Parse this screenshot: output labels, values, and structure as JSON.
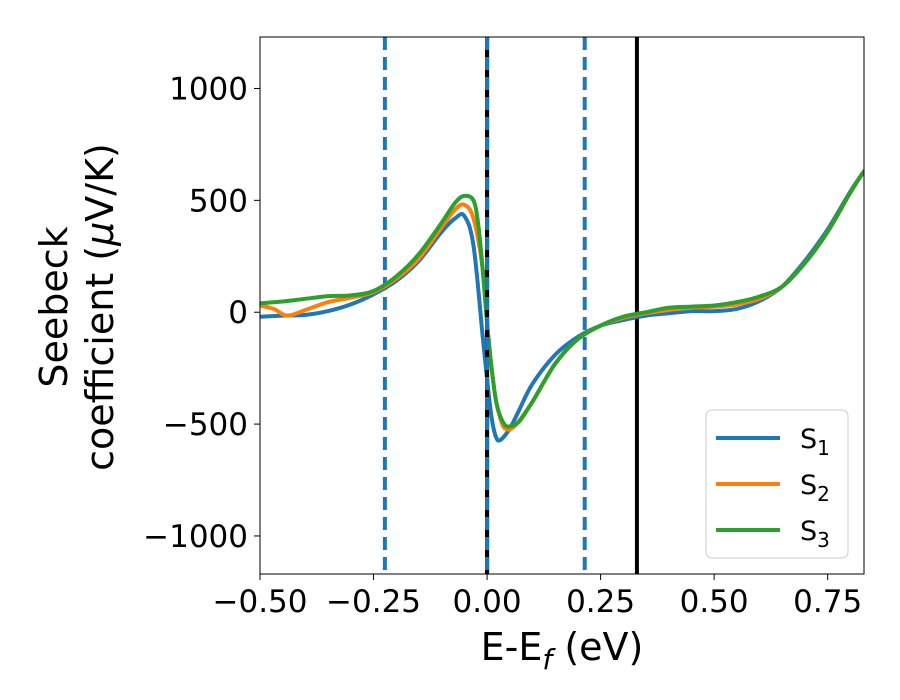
{
  "chart_data": {
    "type": "line",
    "xlabel": "E-E",
    "xlabel_sub": "f",
    "xlabel_unit": " (eV)",
    "ylabel_line1": "Seebeck",
    "ylabel_line2_prefix": "coefficient  (",
    "ylabel_mu": "μ",
    "ylabel_line2_suffix": "V/K)",
    "xlim": [
      -0.5,
      0.83
    ],
    "ylim": [
      -1170,
      1230
    ],
    "x_ticks": [
      -0.5,
      -0.25,
      0.0,
      0.25,
      0.5,
      0.75
    ],
    "x_tick_labels": [
      "−0.50",
      "−0.25",
      "0.00",
      "0.25",
      "0.50",
      "0.75"
    ],
    "y_ticks": [
      -1000,
      -500,
      0,
      500,
      1000
    ],
    "y_tick_labels": [
      "−1000",
      "−500",
      "0",
      "500",
      "1000"
    ],
    "grid": false,
    "legend_position": "lower-right",
    "vertical_lines": [
      {
        "x": -0.225,
        "style": "dashed",
        "color": "#1f77b4"
      },
      {
        "x": 0.0,
        "style": "solid",
        "color": "#000000"
      },
      {
        "x": 0.0,
        "style": "dashed",
        "color": "#1f77b4"
      },
      {
        "x": 0.215,
        "style": "dashed",
        "color": "#1f77b4"
      },
      {
        "x": 0.33,
        "style": "solid",
        "color": "#000000"
      }
    ],
    "series": [
      {
        "name": "S",
        "subscript": "1",
        "color": "#1f77b4",
        "x": [
          -0.5,
          -0.45,
          -0.4,
          -0.35,
          -0.3,
          -0.25,
          -0.2,
          -0.15,
          -0.1,
          -0.07,
          -0.05,
          -0.03,
          -0.01,
          0.0,
          0.01,
          0.02,
          0.03,
          0.05,
          0.07,
          0.1,
          0.15,
          0.2,
          0.25,
          0.3,
          0.35,
          0.4,
          0.45,
          0.5,
          0.55,
          0.6,
          0.65,
          0.7,
          0.75,
          0.8,
          0.83
        ],
        "values": [
          -20,
          -15,
          -12,
          5,
          35,
          80,
          140,
          230,
          360,
          420,
          430,
          300,
          -100,
          -300,
          -470,
          -560,
          -570,
          -520,
          -440,
          -320,
          -190,
          -110,
          -60,
          -35,
          -15,
          -5,
          5,
          5,
          15,
          50,
          115,
          230,
          370,
          540,
          630
        ]
      },
      {
        "name": "S",
        "subscript": "2",
        "color": "#ff7f0e",
        "x": [
          -0.5,
          -0.47,
          -0.44,
          -0.4,
          -0.35,
          -0.3,
          -0.25,
          -0.2,
          -0.15,
          -0.1,
          -0.07,
          -0.05,
          -0.03,
          -0.01,
          0.0,
          0.01,
          0.02,
          0.03,
          0.04,
          0.06,
          0.1,
          0.15,
          0.2,
          0.25,
          0.3,
          0.35,
          0.4,
          0.45,
          0.5,
          0.55,
          0.6,
          0.65,
          0.7,
          0.75,
          0.8,
          0.83
        ],
        "values": [
          30,
          15,
          -15,
          10,
          45,
          65,
          90,
          150,
          240,
          380,
          460,
          480,
          420,
          200,
          -50,
          -250,
          -400,
          -480,
          -520,
          -510,
          -400,
          -230,
          -120,
          -60,
          -25,
          -5,
          10,
          20,
          25,
          35,
          60,
          115,
          220,
          360,
          535,
          630
        ]
      },
      {
        "name": "S",
        "subscript": "3",
        "color": "#2ca02c",
        "x": [
          -0.5,
          -0.45,
          -0.4,
          -0.35,
          -0.3,
          -0.25,
          -0.2,
          -0.15,
          -0.1,
          -0.07,
          -0.05,
          -0.03,
          -0.02,
          -0.01,
          0.0,
          0.01,
          0.02,
          0.03,
          0.04,
          0.05,
          0.07,
          0.1,
          0.15,
          0.2,
          0.25,
          0.3,
          0.35,
          0.4,
          0.45,
          0.5,
          0.55,
          0.6,
          0.65,
          0.7,
          0.75,
          0.8,
          0.83
        ],
        "values": [
          40,
          48,
          60,
          72,
          75,
          95,
          160,
          260,
          400,
          490,
          520,
          500,
          400,
          200,
          -50,
          -250,
          -400,
          -470,
          -505,
          -510,
          -490,
          -400,
          -230,
          -120,
          -60,
          -20,
          0,
          20,
          25,
          30,
          45,
          70,
          115,
          220,
          360,
          535,
          630
        ]
      }
    ]
  }
}
